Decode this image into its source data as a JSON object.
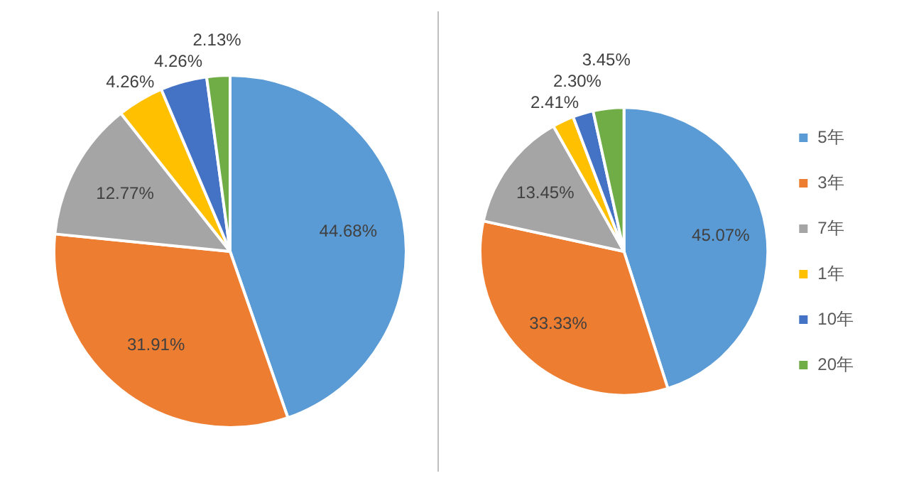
{
  "chart_data": [
    {
      "type": "pie",
      "categories": [
        null,
        null,
        null,
        null,
        null,
        null
      ],
      "values": [
        44.68,
        31.91,
        12.77,
        4.26,
        4.26,
        2.13
      ],
      "value_labels": [
        "44.68%",
        "31.91%",
        "12.77%",
        "4.26%",
        "4.26%",
        "2.13%"
      ],
      "colors": [
        "#5b9bd5",
        "#ed7d31",
        "#a5a5a5",
        "#ffc000",
        "#4472c4",
        "#70ad47"
      ],
      "legend": false
    },
    {
      "type": "pie",
      "categories": [
        "5年",
        "3年",
        "7年",
        "1年",
        "10年",
        "20年"
      ],
      "values": [
        45.07,
        33.33,
        13.45,
        2.41,
        2.3,
        3.45
      ],
      "value_labels": [
        "45.07%",
        "33.33%",
        "13.45%",
        "2.41%",
        "2.30%",
        "3.45%"
      ],
      "colors": [
        "#5b9bd5",
        "#ed7d31",
        "#a5a5a5",
        "#ffc000",
        "#4472c4",
        "#70ad47"
      ],
      "legend": "right"
    }
  ]
}
